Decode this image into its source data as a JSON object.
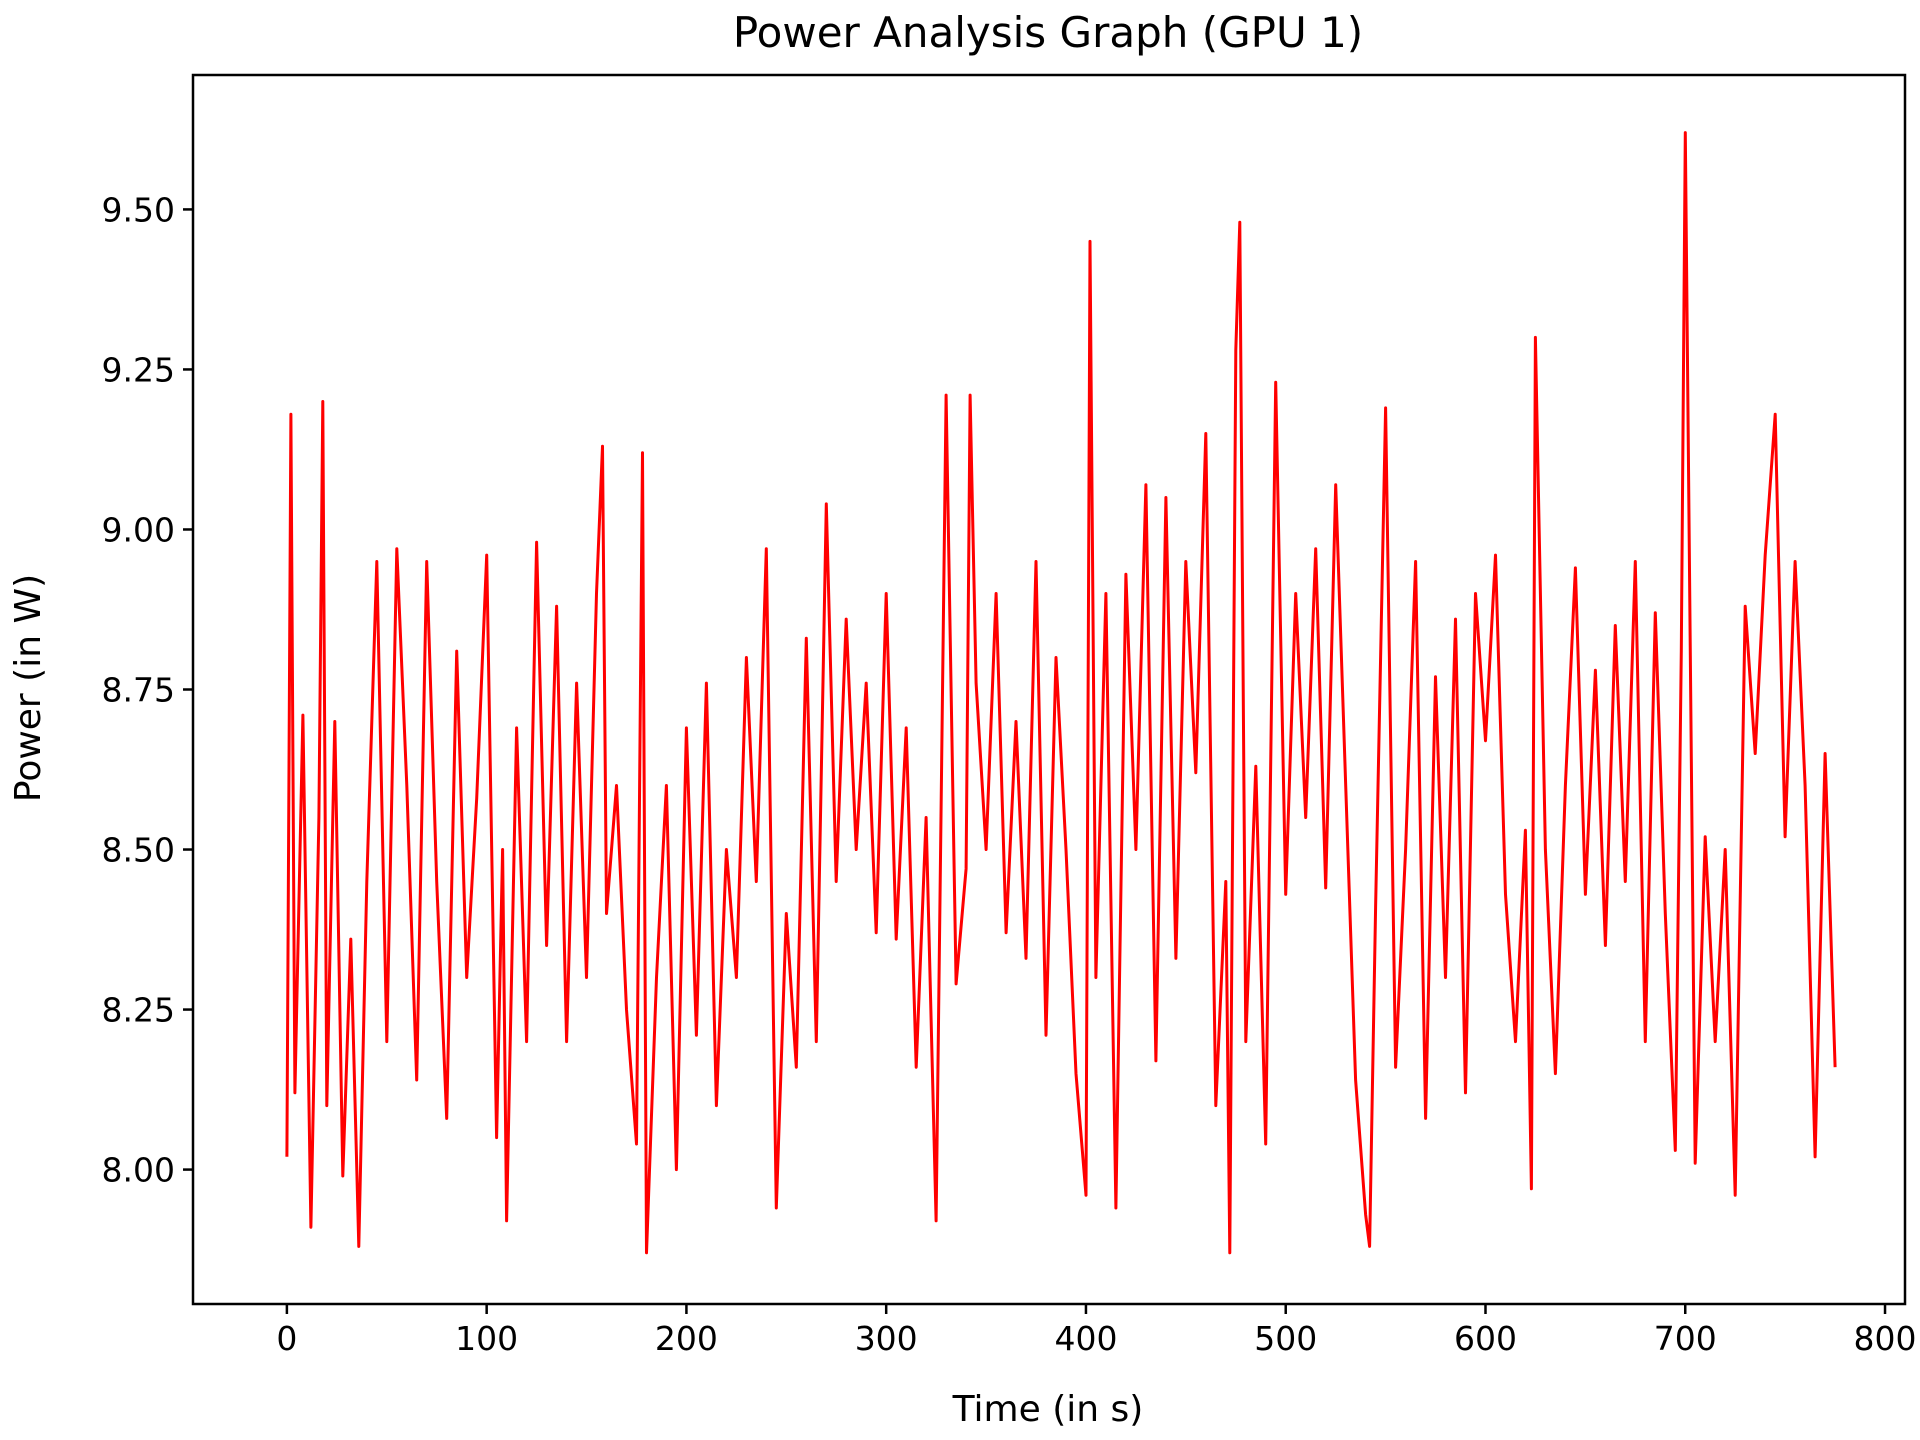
{
  "chart_data": {
    "type": "line",
    "title": "Power Analysis Graph (GPU 1)",
    "xlabel": "Time (in s)",
    "ylabel": "Power (in W)",
    "xlim": [
      -47,
      810
    ],
    "ylim": [
      7.79,
      9.71
    ],
    "x_ticks": [
      0,
      100,
      200,
      300,
      400,
      500,
      600,
      700,
      800
    ],
    "x_tick_labels": [
      "0",
      "100",
      "200",
      "300",
      "400",
      "500",
      "600",
      "700",
      "800"
    ],
    "y_ticks": [
      8.0,
      8.25,
      8.5,
      8.75,
      9.0,
      9.25,
      9.5
    ],
    "y_tick_labels": [
      "8.00",
      "8.25",
      "8.50",
      "8.75",
      "9.00",
      "9.25",
      "9.50"
    ],
    "grid": false,
    "legend": "none",
    "series": [
      {
        "color": "#ff0000",
        "x": [
          0,
          2,
          4,
          8,
          12,
          16,
          18,
          20,
          24,
          28,
          32,
          36,
          40,
          45,
          50,
          55,
          60,
          65,
          70,
          75,
          80,
          85,
          90,
          95,
          100,
          105,
          108,
          110,
          115,
          120,
          125,
          130,
          135,
          140,
          145,
          150,
          155,
          158,
          160,
          165,
          170,
          175,
          178,
          180,
          185,
          190,
          195,
          200,
          205,
          210,
          215,
          220,
          225,
          230,
          235,
          240,
          245,
          250,
          255,
          260,
          265,
          270,
          275,
          280,
          285,
          290,
          295,
          300,
          305,
          310,
          315,
          320,
          325,
          330,
          335,
          340,
          342,
          345,
          350,
          355,
          360,
          365,
          370,
          375,
          380,
          385,
          390,
          395,
          400,
          402,
          405,
          410,
          415,
          420,
          425,
          430,
          435,
          440,
          445,
          450,
          455,
          460,
          465,
          470,
          472,
          475,
          477,
          480,
          485,
          490,
          495,
          500,
          505,
          510,
          515,
          520,
          525,
          530,
          535,
          540,
          542,
          545,
          550,
          555,
          560,
          565,
          570,
          575,
          580,
          585,
          590,
          595,
          600,
          605,
          610,
          615,
          620,
          623,
          625,
          630,
          635,
          640,
          645,
          650,
          655,
          660,
          665,
          670,
          675,
          680,
          685,
          690,
          695,
          698,
          700,
          705,
          710,
          715,
          720,
          725,
          730,
          735,
          740,
          745,
          750,
          755,
          760,
          765,
          770,
          775
        ],
        "y": [
          8.02,
          9.18,
          8.12,
          8.71,
          7.91,
          8.55,
          9.2,
          8.1,
          8.7,
          7.99,
          8.36,
          7.88,
          8.45,
          8.95,
          8.2,
          8.97,
          8.6,
          8.14,
          8.95,
          8.45,
          8.08,
          8.81,
          8.3,
          8.58,
          8.96,
          8.05,
          8.5,
          7.92,
          8.69,
          8.2,
          8.98,
          8.35,
          8.88,
          8.2,
          8.76,
          8.3,
          8.9,
          9.13,
          8.4,
          8.6,
          8.25,
          8.04,
          9.12,
          7.87,
          8.3,
          8.6,
          8.0,
          8.69,
          8.21,
          8.76,
          8.1,
          8.5,
          8.3,
          8.8,
          8.45,
          8.97,
          7.94,
          8.4,
          8.16,
          8.83,
          8.2,
          9.04,
          8.45,
          8.86,
          8.5,
          8.76,
          8.37,
          8.9,
          8.36,
          8.69,
          8.16,
          8.55,
          7.92,
          9.21,
          8.29,
          8.47,
          9.21,
          8.76,
          8.5,
          8.9,
          8.37,
          8.7,
          8.33,
          8.95,
          8.21,
          8.8,
          8.5,
          8.15,
          7.96,
          9.45,
          8.3,
          8.9,
          7.94,
          8.93,
          8.5,
          9.07,
          8.17,
          9.05,
          8.33,
          8.95,
          8.62,
          9.15,
          8.1,
          8.45,
          7.87,
          9.28,
          9.48,
          8.2,
          8.63,
          8.04,
          9.23,
          8.43,
          8.9,
          8.55,
          8.97,
          8.44,
          9.07,
          8.6,
          8.14,
          7.93,
          7.88,
          8.41,
          9.19,
          8.16,
          8.5,
          8.95,
          8.08,
          8.77,
          8.3,
          8.86,
          8.12,
          8.9,
          8.67,
          8.96,
          8.43,
          8.2,
          8.53,
          7.97,
          9.3,
          8.5,
          8.15,
          8.6,
          8.94,
          8.43,
          8.78,
          8.35,
          8.85,
          8.45,
          8.95,
          8.2,
          8.87,
          8.4,
          8.03,
          8.81,
          9.62,
          8.01,
          8.52,
          8.2,
          8.5,
          7.96,
          8.88,
          8.65,
          8.96,
          9.18,
          8.52,
          8.95,
          8.6,
          8.02,
          8.65,
          8.16
        ]
      }
    ]
  }
}
